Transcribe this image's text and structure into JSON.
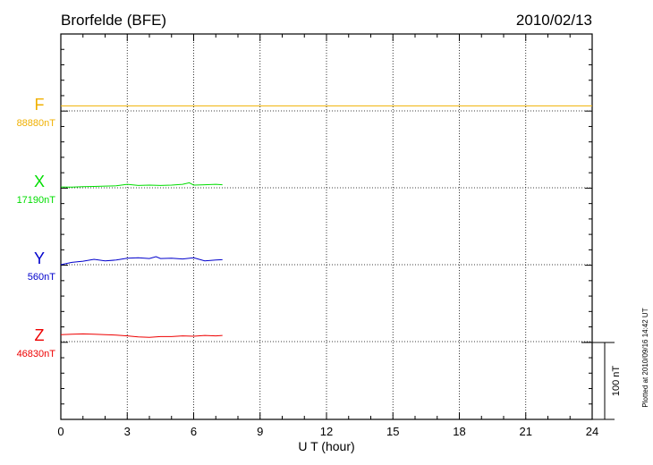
{
  "chart_data": {
    "type": "line",
    "title": "Brorfelde (BFE)",
    "date": "2010/02/13",
    "xlabel": "U T (hour)",
    "xlim": [
      0,
      24
    ],
    "xticks": [
      "0",
      "3",
      "6",
      "9",
      "12",
      "15",
      "18",
      "21",
      "24"
    ],
    "scale_bar_label": "100 nT",
    "scale_bar_nT": 100,
    "footer": "Plotted at 2010/09/16 14:42 UT",
    "grid": true,
    "series": [
      {
        "name": "F",
        "baseline_label": "88880nT",
        "baseline_nT": 88880,
        "color": "#f0b000",
        "x": [
          0,
          24
        ],
        "y": [
          6.5,
          6.5
        ]
      },
      {
        "name": "X",
        "baseline_label": "17190nT",
        "baseline_nT": 17190,
        "color": "#00dd00",
        "x": [
          0,
          0.5,
          1,
          1.5,
          2,
          2.5,
          3,
          3.5,
          4,
          4.5,
          5,
          5.5,
          5.8,
          6,
          6.5,
          7,
          7.3
        ],
        "y": [
          1,
          0.8,
          1.5,
          1.8,
          2.2,
          2.5,
          4.5,
          3,
          3.5,
          3,
          3.5,
          4.5,
          6.5,
          3.5,
          4,
          4.5,
          4
        ]
      },
      {
        "name": "Y",
        "baseline_label": "560nT",
        "baseline_nT": 560,
        "color": "#0000cc",
        "x": [
          0,
          0.5,
          1,
          1.5,
          2,
          2.5,
          3,
          3.5,
          4,
          4.3,
          4.5,
          5,
          5.5,
          6,
          6.5,
          7,
          7.3
        ],
        "y": [
          0,
          3,
          4.5,
          7,
          5,
          6,
          8.5,
          9,
          8,
          10.5,
          8,
          8.5,
          7.5,
          9,
          5,
          6,
          6.5
        ]
      },
      {
        "name": "Z",
        "baseline_label": "46830nT",
        "baseline_nT": 46830,
        "color": "#ee0000",
        "x": [
          0,
          0.5,
          1,
          1.5,
          2,
          2.5,
          3,
          3.5,
          4,
          4.5,
          5,
          5.5,
          6,
          6.5,
          7,
          7.3
        ],
        "y": [
          9,
          9.5,
          10,
          9.5,
          9,
          8.5,
          7.5,
          6,
          5.5,
          6.5,
          6.5,
          7.5,
          7,
          8,
          7.5,
          8
        ]
      }
    ]
  }
}
